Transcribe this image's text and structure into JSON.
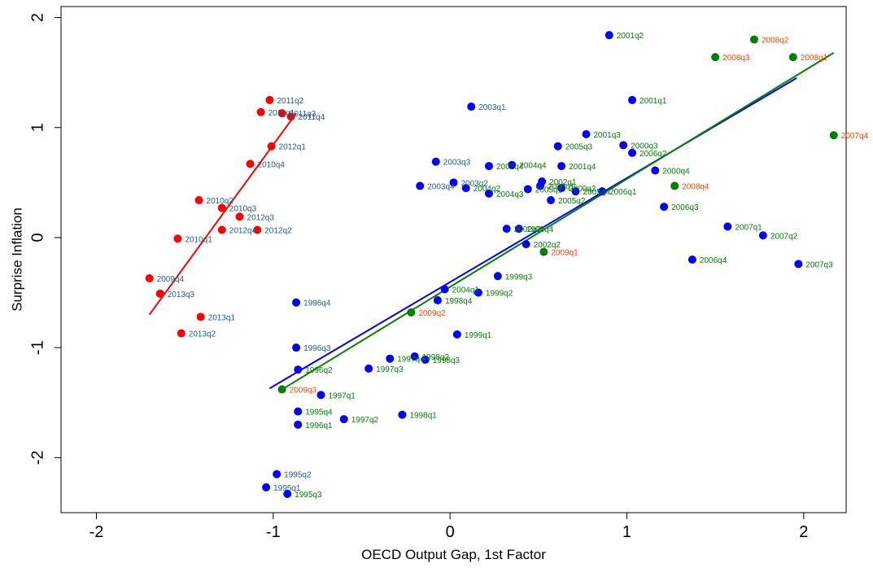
{
  "chart_data": {
    "type": "scatter",
    "title": "",
    "xlabel": "OECD Output Gap, 1st Factor",
    "ylabel": "Surprise Inflation",
    "xlim": [
      -2.2,
      2.24
    ],
    "ylim": [
      -2.5,
      2.1
    ],
    "xticks": [
      -2,
      -1,
      0,
      1,
      2
    ],
    "yticks": [
      -2,
      -1,
      0,
      1,
      2
    ],
    "xtick_labels": [
      "-2",
      "-1",
      "0",
      "1",
      "2"
    ],
    "ytick_labels": [
      "-2",
      "-1",
      "0",
      "1",
      "2"
    ],
    "grid": false,
    "legend": "none",
    "colors": {
      "red_point": "#ff0000",
      "blue_point": "#0000ff",
      "green_point": "#008000",
      "red_label": "#ff4500",
      "blue_label": "#1c5a8c",
      "green_label": "#008000",
      "red_line": "#ff0000",
      "blue_line": "#0000ff",
      "green_line": "#008000"
    },
    "lines": [
      {
        "color": "red",
        "x": [
          -1.7,
          -0.87
        ],
        "y": [
          -0.7,
          1.13
        ]
      },
      {
        "color": "blue",
        "x": [
          -1.02,
          1.96
        ],
        "y": [
          -1.37,
          1.45
        ]
      },
      {
        "color": "green",
        "x": [
          -0.95,
          2.17
        ],
        "y": [
          -1.38,
          1.68
        ]
      }
    ],
    "points": [
      {
        "label": "1995q1",
        "x": -1.04,
        "y": -2.27,
        "color": "blue",
        "label_color": "blue"
      },
      {
        "label": "1995q2",
        "x": -0.98,
        "y": -2.15,
        "color": "blue",
        "label_color": "blue"
      },
      {
        "label": "1995q3",
        "x": -0.92,
        "y": -2.33,
        "color": "blue",
        "label_color": "green"
      },
      {
        "label": "1995q4",
        "x": -0.86,
        "y": -1.58,
        "color": "blue",
        "label_color": "green"
      },
      {
        "label": "1996q1",
        "x": -0.86,
        "y": -1.7,
        "color": "blue",
        "label_color": "green"
      },
      {
        "label": "1996q2",
        "x": -0.86,
        "y": -1.2,
        "color": "blue",
        "label_color": "green"
      },
      {
        "label": "1996q3",
        "x": -0.87,
        "y": -1.0,
        "color": "blue",
        "label_color": "blue"
      },
      {
        "label": "1996q4",
        "x": -0.87,
        "y": -0.59,
        "color": "blue",
        "label_color": "blue"
      },
      {
        "label": "1997q1",
        "x": -0.73,
        "y": -1.43,
        "color": "blue",
        "label_color": "green"
      },
      {
        "label": "1997q2",
        "x": -0.6,
        "y": -1.65,
        "color": "blue",
        "label_color": "green"
      },
      {
        "label": "1997q3",
        "x": -0.46,
        "y": -1.19,
        "color": "blue",
        "label_color": "green"
      },
      {
        "label": "1997q4",
        "x": -0.34,
        "y": -1.1,
        "color": "blue",
        "label_color": "green"
      },
      {
        "label": "1998q1",
        "x": -0.27,
        "y": -1.61,
        "color": "blue",
        "label_color": "green"
      },
      {
        "label": "1998q2",
        "x": -0.2,
        "y": -1.08,
        "color": "blue",
        "label_color": "green"
      },
      {
        "label": "1998q3",
        "x": -0.14,
        "y": -1.11,
        "color": "blue",
        "label_color": "green"
      },
      {
        "label": "1998q4",
        "x": -0.07,
        "y": -0.57,
        "color": "blue",
        "label_color": "green"
      },
      {
        "label": "1999q1",
        "x": 0.04,
        "y": -0.88,
        "color": "blue",
        "label_color": "green"
      },
      {
        "label": "1999q2",
        "x": 0.16,
        "y": -0.5,
        "color": "blue",
        "label_color": "green"
      },
      {
        "label": "1999q3",
        "x": 0.27,
        "y": -0.35,
        "color": "blue",
        "label_color": "green"
      },
      {
        "label": "1999q4",
        "x": 0.39,
        "y": 0.08,
        "color": "blue",
        "label_color": "green"
      },
      {
        "label": "2000q1",
        "x": 0.51,
        "y": 0.47,
        "color": "blue",
        "label_color": "green"
      },
      {
        "label": "2000q2",
        "x": 0.63,
        "y": 0.45,
        "color": "blue",
        "label_color": "green"
      },
      {
        "label": "2000q3",
        "x": 0.98,
        "y": 0.84,
        "color": "blue",
        "label_color": "green"
      },
      {
        "label": "2000q4",
        "x": 1.16,
        "y": 0.61,
        "color": "blue",
        "label_color": "green"
      },
      {
        "label": "2001q1",
        "x": 1.03,
        "y": 1.25,
        "color": "blue",
        "label_color": "green"
      },
      {
        "label": "2001q2",
        "x": 0.9,
        "y": 1.84,
        "color": "blue",
        "label_color": "green"
      },
      {
        "label": "2001q3",
        "x": 0.77,
        "y": 0.94,
        "color": "blue",
        "label_color": "green"
      },
      {
        "label": "2001q4",
        "x": 0.63,
        "y": 0.65,
        "color": "blue",
        "label_color": "green"
      },
      {
        "label": "2002q1",
        "x": 0.52,
        "y": 0.51,
        "color": "blue",
        "label_color": "green"
      },
      {
        "label": "2002q2",
        "x": 0.43,
        "y": -0.06,
        "color": "blue",
        "label_color": "green"
      },
      {
        "label": "2002q3",
        "x": 0.32,
        "y": 0.08,
        "color": "blue",
        "label_color": "green"
      },
      {
        "label": "2002q4",
        "x": 0.22,
        "y": 0.65,
        "color": "blue",
        "label_color": "green"
      },
      {
        "label": "2003q1",
        "x": 0.12,
        "y": 1.19,
        "color": "blue",
        "label_color": "blue"
      },
      {
        "label": "2003q2",
        "x": 0.02,
        "y": 0.5,
        "color": "blue",
        "label_color": "blue"
      },
      {
        "label": "2003q3",
        "x": -0.08,
        "y": 0.69,
        "color": "blue",
        "label_color": "blue"
      },
      {
        "label": "2003q4",
        "x": -0.17,
        "y": 0.47,
        "color": "blue",
        "label_color": "blue"
      },
      {
        "label": "2004q1",
        "x": -0.03,
        "y": -0.47,
        "color": "blue",
        "label_color": "green"
      },
      {
        "label": "2004q2",
        "x": 0.09,
        "y": 0.45,
        "color": "blue",
        "label_color": "green"
      },
      {
        "label": "2004q3",
        "x": 0.22,
        "y": 0.4,
        "color": "blue",
        "label_color": "green"
      },
      {
        "label": "2004q4",
        "x": 0.35,
        "y": 0.66,
        "color": "blue",
        "label_color": "green"
      },
      {
        "label": "2005q1",
        "x": 0.44,
        "y": 0.44,
        "color": "blue",
        "label_color": "green"
      },
      {
        "label": "2005q2",
        "x": 0.57,
        "y": 0.34,
        "color": "blue",
        "label_color": "green"
      },
      {
        "label": "2005q3",
        "x": 0.61,
        "y": 0.83,
        "color": "blue",
        "label_color": "green"
      },
      {
        "label": "2005q4",
        "x": 0.71,
        "y": 0.42,
        "color": "blue",
        "label_color": "green"
      },
      {
        "label": "2006q1",
        "x": 0.86,
        "y": 0.42,
        "color": "blue",
        "label_color": "green"
      },
      {
        "label": "2006q2",
        "x": 1.03,
        "y": 0.77,
        "color": "blue",
        "label_color": "green"
      },
      {
        "label": "2006q3",
        "x": 1.21,
        "y": 0.28,
        "color": "blue",
        "label_color": "green"
      },
      {
        "label": "2006q4",
        "x": 1.37,
        "y": -0.2,
        "color": "blue",
        "label_color": "green"
      },
      {
        "label": "2007q1",
        "x": 1.57,
        "y": 0.1,
        "color": "blue",
        "label_color": "green"
      },
      {
        "label": "2007q2",
        "x": 1.77,
        "y": 0.02,
        "color": "blue",
        "label_color": "green"
      },
      {
        "label": "2007q3",
        "x": 1.97,
        "y": -0.24,
        "color": "blue",
        "label_color": "green"
      },
      {
        "label": "2007q4",
        "x": 2.17,
        "y": 0.93,
        "color": "green",
        "label_color": "red"
      },
      {
        "label": "2008q1",
        "x": 1.94,
        "y": 1.64,
        "color": "green",
        "label_color": "red"
      },
      {
        "label": "2008q2",
        "x": 1.72,
        "y": 1.8,
        "color": "green",
        "label_color": "red"
      },
      {
        "label": "2008q3",
        "x": 1.5,
        "y": 1.64,
        "color": "green",
        "label_color": "red"
      },
      {
        "label": "2008q4",
        "x": 1.27,
        "y": 0.47,
        "color": "green",
        "label_color": "red"
      },
      {
        "label": "2009q1",
        "x": 0.53,
        "y": -0.13,
        "color": "green",
        "label_color": "red"
      },
      {
        "label": "2009q2",
        "x": -0.22,
        "y": -0.68,
        "color": "green",
        "label_color": "red"
      },
      {
        "label": "2009q3",
        "x": -0.95,
        "y": -1.38,
        "color": "green",
        "label_color": "red"
      },
      {
        "label": "2009q4",
        "x": -1.7,
        "y": -0.37,
        "color": "red",
        "label_color": "blue"
      },
      {
        "label": "2010q1",
        "x": -1.54,
        "y": -0.01,
        "color": "red",
        "label_color": "blue"
      },
      {
        "label": "2010q2",
        "x": -1.42,
        "y": 0.34,
        "color": "red",
        "label_color": "blue"
      },
      {
        "label": "2010q3",
        "x": -1.29,
        "y": 0.27,
        "color": "red",
        "label_color": "blue"
      },
      {
        "label": "2010q4",
        "x": -1.13,
        "y": 0.67,
        "color": "red",
        "label_color": "blue"
      },
      {
        "label": "2011q1",
        "x": -1.07,
        "y": 1.14,
        "color": "red",
        "label_color": "blue"
      },
      {
        "label": "2011q2",
        "x": -1.02,
        "y": 1.25,
        "color": "red",
        "label_color": "blue"
      },
      {
        "label": "2011q3",
        "x": -0.95,
        "y": 1.13,
        "color": "red",
        "label_color": "blue"
      },
      {
        "label": "2011q4",
        "x": -0.9,
        "y": 1.1,
        "color": "red",
        "label_color": "blue"
      },
      {
        "label": "2012q1",
        "x": -1.01,
        "y": 0.83,
        "color": "red",
        "label_color": "blue"
      },
      {
        "label": "2012q2",
        "x": -1.09,
        "y": 0.07,
        "color": "red",
        "label_color": "blue"
      },
      {
        "label": "2012q3",
        "x": -1.19,
        "y": 0.19,
        "color": "red",
        "label_color": "blue"
      },
      {
        "label": "2012q4",
        "x": -1.29,
        "y": 0.07,
        "color": "red",
        "label_color": "blue"
      },
      {
        "label": "2013q1",
        "x": -1.41,
        "y": -0.72,
        "color": "red",
        "label_color": "blue"
      },
      {
        "label": "2013q2",
        "x": -1.52,
        "y": -0.87,
        "color": "red",
        "label_color": "blue"
      },
      {
        "label": "2013q3",
        "x": -1.64,
        "y": -0.51,
        "color": "red",
        "label_color": "blue"
      }
    ]
  }
}
